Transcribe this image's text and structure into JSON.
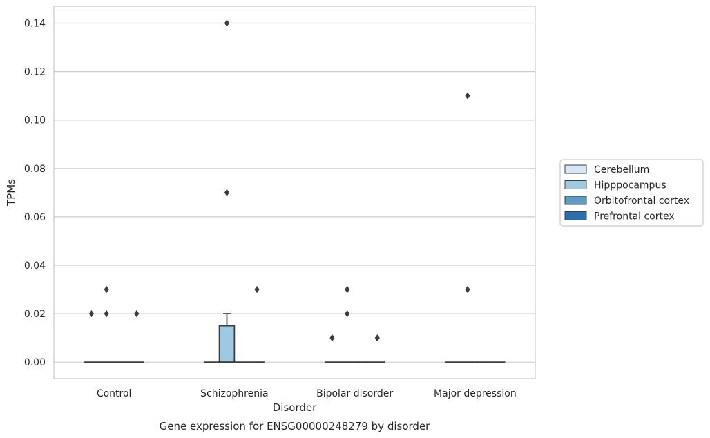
{
  "chart_data": {
    "type": "box",
    "categories": [
      "Control",
      "Schizophrenia",
      "Bipolar disorder",
      "Major depression"
    ],
    "xlabel": "Disorder",
    "ylabel": "TPMs",
    "caption": "Gene expression for ENSG00000248279 by disorder",
    "ylim": [
      -0.0068,
      0.147
    ],
    "yticks": [
      "0.00",
      "0.02",
      "0.04",
      "0.06",
      "0.08",
      "0.10",
      "0.12",
      "0.14"
    ],
    "ytick_values": [
      0,
      0.02,
      0.04,
      0.06,
      0.08,
      0.1,
      0.12,
      0.14
    ],
    "grid": true,
    "legend_position": "right",
    "series": [
      {
        "name": "Cerebellum",
        "color": "#d6e6f4"
      },
      {
        "name": "Hipppocampus",
        "color": "#9ec9e2"
      },
      {
        "name": "Orbitofrontal cortex",
        "color": "#5a9ec9"
      },
      {
        "name": "Prefrontal cortex",
        "color": "#2a6fad"
      }
    ],
    "boxes": [
      {
        "category": 0,
        "series": 0,
        "q1": 0,
        "median": 0,
        "q3": 0,
        "whisker_low": 0,
        "whisker_high": 0,
        "outliers": [
          0.02
        ]
      },
      {
        "category": 0,
        "series": 1,
        "q1": 0,
        "median": 0,
        "q3": 0,
        "whisker_low": 0,
        "whisker_high": 0,
        "outliers": [
          0.02,
          0.03
        ]
      },
      {
        "category": 0,
        "series": 2,
        "q1": 0,
        "median": 0,
        "q3": 0,
        "whisker_low": 0,
        "whisker_high": 0,
        "outliers": []
      },
      {
        "category": 0,
        "series": 3,
        "q1": 0,
        "median": 0,
        "q3": 0,
        "whisker_low": 0,
        "whisker_high": 0,
        "outliers": [
          0.02
        ]
      },
      {
        "category": 1,
        "series": 0,
        "q1": 0,
        "median": 0,
        "q3": 0,
        "whisker_low": 0,
        "whisker_high": 0,
        "outliers": []
      },
      {
        "category": 1,
        "series": 1,
        "q1": 0,
        "median": 0,
        "q3": 0.015,
        "whisker_low": 0,
        "whisker_high": 0.02,
        "outliers": [
          0.07,
          0.14
        ]
      },
      {
        "category": 1,
        "series": 2,
        "q1": 0,
        "median": 0,
        "q3": 0,
        "whisker_low": 0,
        "whisker_high": 0,
        "outliers": []
      },
      {
        "category": 1,
        "series": 3,
        "q1": 0,
        "median": 0,
        "q3": 0,
        "whisker_low": 0,
        "whisker_high": 0,
        "outliers": [
          0.03
        ]
      },
      {
        "category": 2,
        "series": 0,
        "q1": 0,
        "median": 0,
        "q3": 0,
        "whisker_low": 0,
        "whisker_high": 0,
        "outliers": [
          0.01
        ]
      },
      {
        "category": 2,
        "series": 1,
        "q1": 0,
        "median": 0,
        "q3": 0,
        "whisker_low": 0,
        "whisker_high": 0,
        "outliers": [
          0.02,
          0.03
        ]
      },
      {
        "category": 2,
        "series": 2,
        "q1": 0,
        "median": 0,
        "q3": 0,
        "whisker_low": 0,
        "whisker_high": 0,
        "outliers": []
      },
      {
        "category": 2,
        "series": 3,
        "q1": 0,
        "median": 0,
        "q3": 0,
        "whisker_low": 0,
        "whisker_high": 0,
        "outliers": [
          0.01
        ]
      },
      {
        "category": 3,
        "series": 0,
        "q1": 0,
        "median": 0,
        "q3": 0,
        "whisker_low": 0,
        "whisker_high": 0,
        "outliers": []
      },
      {
        "category": 3,
        "series": 1,
        "q1": 0,
        "median": 0,
        "q3": 0,
        "whisker_low": 0,
        "whisker_high": 0,
        "outliers": [
          0.03,
          0.11
        ]
      },
      {
        "category": 3,
        "series": 2,
        "q1": 0,
        "median": 0,
        "q3": 0,
        "whisker_low": 0,
        "whisker_high": 0,
        "outliers": []
      },
      {
        "category": 3,
        "series": 3,
        "q1": 0,
        "median": 0,
        "q3": 0,
        "whisker_low": 0,
        "whisker_high": 0,
        "outliers": []
      }
    ]
  }
}
